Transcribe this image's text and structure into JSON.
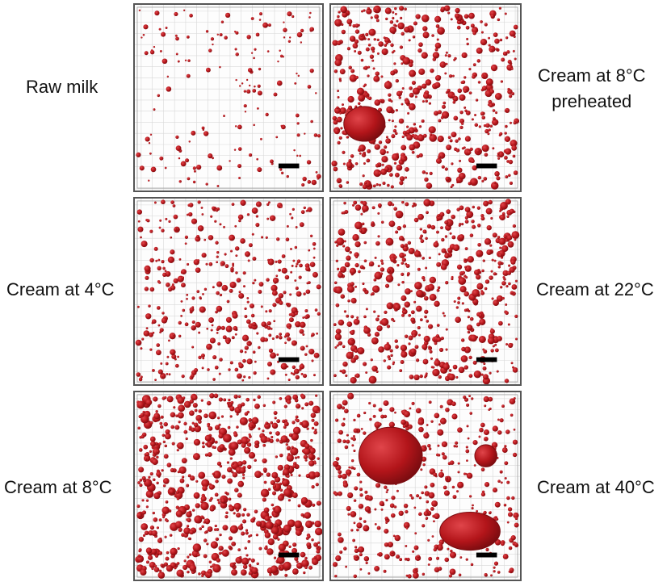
{
  "panels": [
    {
      "id": "raw-milk",
      "label": "Raw milk",
      "density": "low",
      "big_droplets": 0
    },
    {
      "id": "cream-8c-pre",
      "label": "Cream at 8°C preheated",
      "density": "high",
      "big_droplets": 1
    },
    {
      "id": "cream-4c",
      "label": "Cream at 4°C",
      "density": "medium",
      "big_droplets": 0
    },
    {
      "id": "cream-22c",
      "label": "Cream at 22°C",
      "density": "high",
      "big_droplets": 0
    },
    {
      "id": "cream-8c",
      "label": "Cream at 8°C",
      "density": "veryhigh",
      "big_droplets": 0
    },
    {
      "id": "cream-40c",
      "label": "Cream at 40°C",
      "density": "medium",
      "big_droplets": 3
    }
  ],
  "labels": {
    "raw_milk": "Raw milk",
    "cream_8c_pre_line1": "Cream at 8°C",
    "cream_8c_pre_line2": "preheated",
    "cream_4c": "Cream at 4°C",
    "cream_22c": "Cream at 22°C",
    "cream_8c": "Cream at 8°C",
    "cream_40c": "Cream at 40°C"
  },
  "colors": {
    "droplet": "#b3151a",
    "droplet_dark": "#7a0c10",
    "grid": "#d8d8d8",
    "scale_bar": "#000000"
  }
}
